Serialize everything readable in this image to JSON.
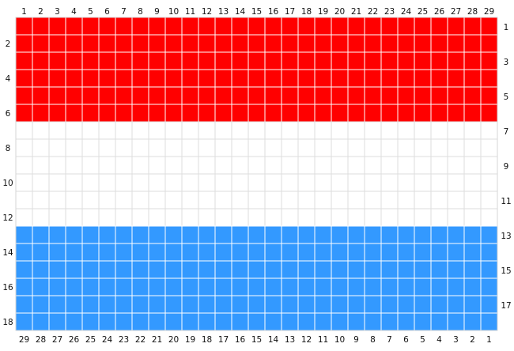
{
  "title": "",
  "chart_data": {
    "type": "heatmap",
    "columns": 29,
    "rows": 18,
    "top_labels": [
      "1",
      "2",
      "3",
      "4",
      "5",
      "6",
      "7",
      "8",
      "9",
      "10",
      "11",
      "12",
      "13",
      "14",
      "15",
      "16",
      "17",
      "18",
      "19",
      "20",
      "21",
      "22",
      "23",
      "24",
      "25",
      "26",
      "27",
      "28",
      "29"
    ],
    "bottom_labels": [
      "29",
      "28",
      "27",
      "26",
      "25",
      "24",
      "23",
      "22",
      "21",
      "20",
      "19",
      "18",
      "17",
      "16",
      "15",
      "14",
      "13",
      "12",
      "11",
      "10",
      "9",
      "8",
      "7",
      "6",
      "5",
      "4",
      "3",
      "2",
      "1"
    ],
    "left_labels": [
      "2",
      "4",
      "6",
      "8",
      "10",
      "12",
      "14",
      "16",
      "18"
    ],
    "right_labels": [
      "1",
      "3",
      "5",
      "7",
      "9",
      "11",
      "13",
      "15",
      "17"
    ],
    "bands": [
      {
        "color": "red",
        "hex": "#ff0000",
        "row_start": 1,
        "row_end": 6
      },
      {
        "color": "white",
        "hex": "#ffffff",
        "row_start": 7,
        "row_end": 12
      },
      {
        "color": "blue",
        "hex": "#3399ff",
        "row_start": 13,
        "row_end": 18
      }
    ],
    "colors": {
      "background": "#ffffff",
      "grid_on_color": "#ffffff",
      "grid_on_white": "#dddddd"
    }
  }
}
